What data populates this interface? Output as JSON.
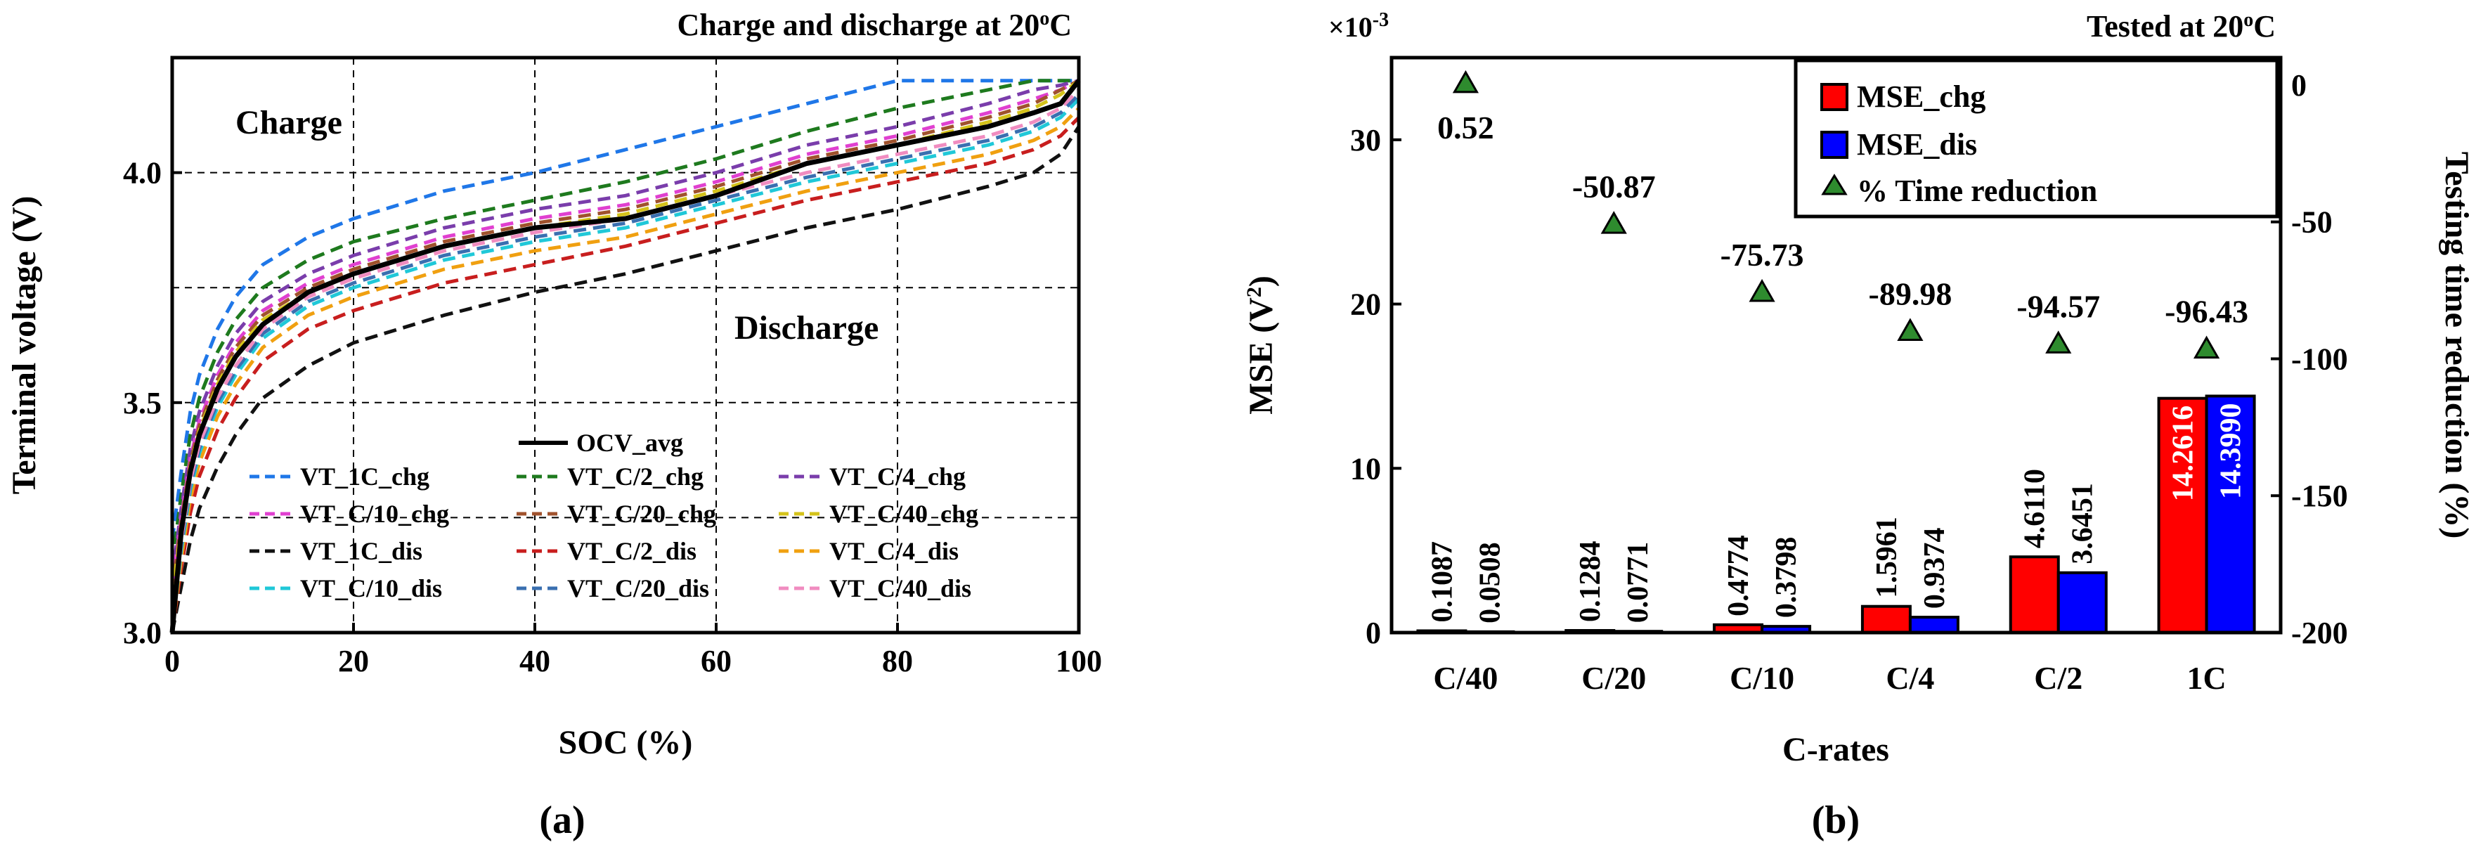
{
  "chart_data": [
    {
      "type": "line",
      "panel_label": "(a)",
      "title": "Charge and discharge at 20oC",
      "title_parts": {
        "main": "Charge and discharge at 20",
        "sup": "o",
        "suffix": "C"
      },
      "xlabel": "SOC (%)",
      "ylabel": "Terminal voltage (V)",
      "xlim": [
        0,
        100
      ],
      "ylim": [
        3.0,
        4.25
      ],
      "xticks": [
        0,
        20,
        40,
        60,
        80,
        100
      ],
      "yticks": [
        3.0,
        3.5,
        4.0
      ],
      "ytick_labels": [
        "3.0",
        "3.5",
        "4.0"
      ],
      "grid": true,
      "annotations": [
        "Charge",
        "Discharge"
      ],
      "legend_ocv": "OCV_avg",
      "x": [
        0,
        1,
        2,
        3,
        5,
        7,
        10,
        15,
        20,
        30,
        40,
        50,
        60,
        70,
        80,
        90,
        95,
        98,
        100
      ],
      "series": [
        {
          "name": "VT_1C_chg",
          "color": "#1f77e8",
          "dash": true,
          "values": [
            3.2,
            3.35,
            3.48,
            3.56,
            3.66,
            3.73,
            3.8,
            3.86,
            3.9,
            3.96,
            4.0,
            4.05,
            4.1,
            4.15,
            4.2,
            4.2,
            4.2,
            4.2,
            4.2
          ]
        },
        {
          "name": "VT_C/2_chg",
          "color": "#1e7a1e",
          "dash": true,
          "values": [
            3.15,
            3.3,
            3.43,
            3.51,
            3.61,
            3.68,
            3.75,
            3.81,
            3.85,
            3.9,
            3.94,
            3.98,
            4.03,
            4.09,
            4.14,
            4.18,
            4.2,
            4.2,
            4.2
          ]
        },
        {
          "name": "VT_C/4_chg",
          "color": "#7a3dab",
          "dash": true,
          "values": [
            3.12,
            3.27,
            3.4,
            3.48,
            3.58,
            3.65,
            3.72,
            3.78,
            3.82,
            3.88,
            3.92,
            3.95,
            4.0,
            4.06,
            4.1,
            4.15,
            4.18,
            4.19,
            4.2
          ]
        },
        {
          "name": "VT_C/10_chg",
          "color": "#e040d0",
          "dash": true,
          "values": [
            3.1,
            3.25,
            3.38,
            3.46,
            3.56,
            3.63,
            3.7,
            3.76,
            3.8,
            3.86,
            3.9,
            3.93,
            3.98,
            4.04,
            4.08,
            4.13,
            4.16,
            4.18,
            4.2
          ]
        },
        {
          "name": "VT_C/20_chg",
          "color": "#a0522d",
          "dash": true,
          "values": [
            3.09,
            3.24,
            3.37,
            3.45,
            3.55,
            3.62,
            3.69,
            3.75,
            3.79,
            3.85,
            3.89,
            3.92,
            3.97,
            4.03,
            4.07,
            4.12,
            4.15,
            4.18,
            4.2
          ]
        },
        {
          "name": "VT_C/40_chg",
          "color": "#d4c21a",
          "dash": true,
          "values": [
            3.08,
            3.23,
            3.36,
            3.44,
            3.54,
            3.61,
            3.68,
            3.74,
            3.78,
            3.84,
            3.88,
            3.91,
            3.96,
            4.02,
            4.06,
            4.11,
            4.14,
            4.17,
            4.2
          ]
        },
        {
          "name": "VT_1C_dis",
          "color": "#111111",
          "dash": true,
          "values": [
            3.0,
            3.1,
            3.2,
            3.27,
            3.36,
            3.43,
            3.51,
            3.58,
            3.63,
            3.69,
            3.74,
            3.78,
            3.83,
            3.88,
            3.92,
            3.97,
            4.0,
            4.04,
            4.1
          ]
        },
        {
          "name": "VT_C/2_dis",
          "color": "#c81e1e",
          "dash": true,
          "values": [
            3.0,
            3.14,
            3.26,
            3.34,
            3.44,
            3.51,
            3.59,
            3.66,
            3.7,
            3.76,
            3.8,
            3.84,
            3.89,
            3.94,
            3.98,
            4.02,
            4.05,
            4.08,
            4.12
          ]
        },
        {
          "name": "VT_C/4_dis",
          "color": "#f0a010",
          "dash": true,
          "values": [
            3.0,
            3.16,
            3.29,
            3.37,
            3.47,
            3.54,
            3.62,
            3.69,
            3.73,
            3.79,
            3.83,
            3.86,
            3.91,
            3.96,
            4.0,
            4.04,
            4.07,
            4.1,
            4.14
          ]
        },
        {
          "name": "VT_C/10_dis",
          "color": "#20c8d8",
          "dash": true,
          "values": [
            3.0,
            3.18,
            3.31,
            3.39,
            3.49,
            3.56,
            3.64,
            3.71,
            3.75,
            3.81,
            3.85,
            3.88,
            3.93,
            3.98,
            4.02,
            4.06,
            4.09,
            4.12,
            4.16
          ]
        },
        {
          "name": "VT_C/20_dis",
          "color": "#3a6fb0",
          "dash": true,
          "values": [
            3.0,
            3.19,
            3.32,
            3.4,
            3.5,
            3.57,
            3.65,
            3.72,
            3.76,
            3.82,
            3.86,
            3.89,
            3.94,
            3.99,
            4.03,
            4.07,
            4.1,
            4.13,
            4.17
          ]
        },
        {
          "name": "VT_C/40_dis",
          "color": "#f08cc0",
          "dash": true,
          "values": [
            3.0,
            3.2,
            3.33,
            3.41,
            3.51,
            3.58,
            3.66,
            3.73,
            3.77,
            3.83,
            3.87,
            3.9,
            3.95,
            4.0,
            4.04,
            4.08,
            4.11,
            4.14,
            4.18
          ]
        },
        {
          "name": "OCV_avg",
          "color": "#000000",
          "dash": false,
          "values": [
            3.0,
            3.22,
            3.35,
            3.43,
            3.53,
            3.6,
            3.67,
            3.74,
            3.78,
            3.84,
            3.88,
            3.9,
            3.95,
            4.02,
            4.06,
            4.1,
            4.13,
            4.15,
            4.2
          ]
        }
      ]
    },
    {
      "type": "bar",
      "panel_label": "(b)",
      "title": "Tested at 20oC",
      "title_parts": {
        "main": "Tested at 20",
        "sup": "o",
        "suffix": "C"
      },
      "categories": [
        "C/40",
        "C/20",
        "C/10",
        "C/4",
        "C/2",
        "1C"
      ],
      "xlabel": "C-rates",
      "ylabel": "MSE (V²)",
      "ylabel_parts": {
        "main": "MSE (V",
        "sup": "2",
        "suffix": ")"
      },
      "y_multiplier": "×10-3",
      "y_multiplier_parts": {
        "main": "×10",
        "sup": "-3"
      },
      "ylim": [
        0,
        35
      ],
      "yticks": [
        0,
        10,
        20,
        30
      ],
      "y2label": "Testing time reduction (%)",
      "y2lim": [
        -200,
        10
      ],
      "y2ticks": [
        0,
        -50,
        -100,
        -150,
        -200
      ],
      "series": [
        {
          "name": "MSE_chg",
          "color": "#ff0000",
          "values": [
            0.1087,
            0.1284,
            0.4774,
            1.5961,
            4.611,
            14.2616
          ],
          "labels": [
            "0.1087",
            "0.1284",
            "0.4774",
            "1.5961",
            "4.6110",
            "14.2616"
          ]
        },
        {
          "name": "MSE_dis",
          "color": "#0000ff",
          "values": [
            0.0508,
            0.0771,
            0.3798,
            0.9374,
            3.6451,
            14.399
          ],
          "labels": [
            "0.0508",
            "0.0771",
            "0.3798",
            "0.9374",
            "3.6451",
            "14.3990"
          ]
        }
      ],
      "time_reduction": {
        "name": "% Time reduction",
        "color": "#2e8b2e",
        "values": [
          0.52,
          -50.87,
          -75.73,
          -89.98,
          -94.57,
          -96.43
        ],
        "labels": [
          "0.52",
          "-50.87",
          "-75.73",
          "-89.98",
          "-94.57",
          "-96.43"
        ]
      }
    }
  ]
}
